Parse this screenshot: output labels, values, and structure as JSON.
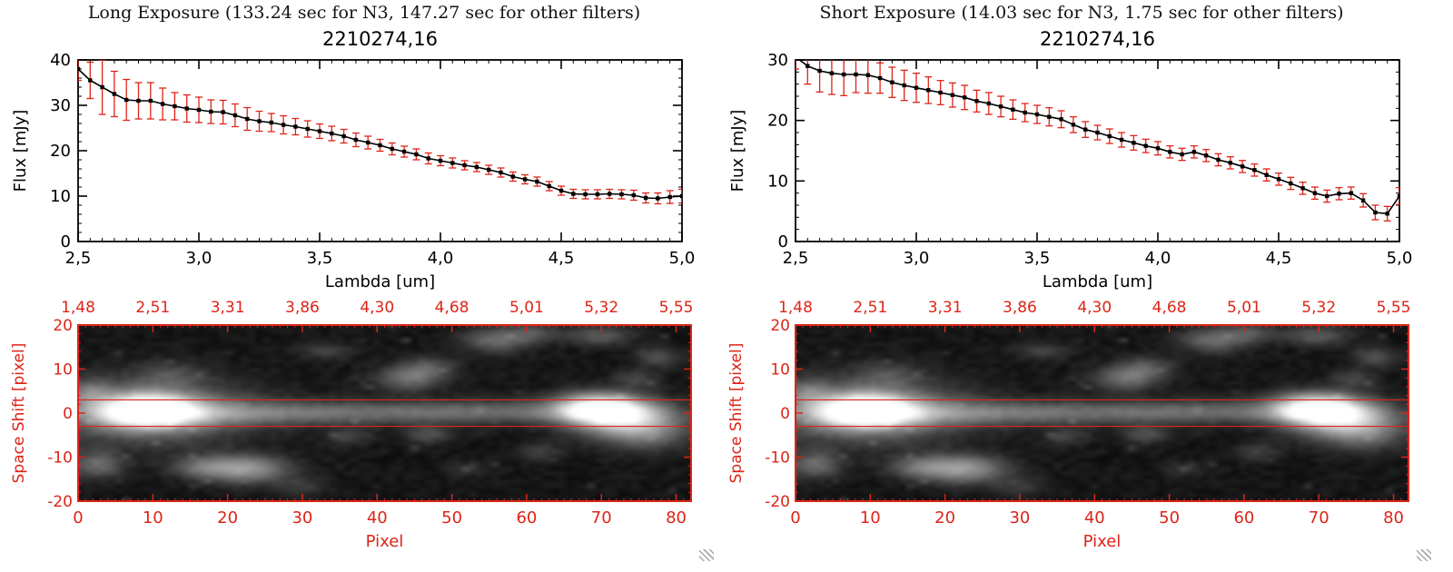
{
  "colors": {
    "red": "#dd2418",
    "black": "#000000",
    "background": "#ffffff"
  },
  "panels": [
    {
      "header": "Long Exposure (133.24 sec for N3, 147.27 sec for other filters)",
      "spectrum_ref": 0,
      "image_ref": 2
    },
    {
      "header": "Short Exposure (14.03 sec for N3, 1.75 sec for other filters)",
      "spectrum_ref": 1,
      "image_ref": 2
    }
  ],
  "chart_data": [
    {
      "type": "line",
      "title": "2210274,16",
      "xlabel": "Lambda [um]",
      "ylabel": "Flux [mJy]",
      "xlim": [
        2.5,
        5.0
      ],
      "ylim": [
        0,
        40
      ],
      "xtick_values": [
        2.5,
        3.0,
        3.5,
        4.0,
        4.5,
        5.0
      ],
      "xtick_labels": [
        "2,5",
        "3,0",
        "3,5",
        "4,0",
        "4,5",
        "5,0"
      ],
      "yticks": [
        0,
        10,
        20,
        30,
        40
      ],
      "marker": "square",
      "line_color": "#000000",
      "errorbar_color": "#dd2418",
      "x": [
        2.5,
        2.55,
        2.6,
        2.65,
        2.7,
        2.75,
        2.8,
        2.85,
        2.9,
        2.95,
        3.0,
        3.05,
        3.1,
        3.15,
        3.2,
        3.25,
        3.3,
        3.35,
        3.4,
        3.45,
        3.5,
        3.55,
        3.6,
        3.65,
        3.7,
        3.75,
        3.8,
        3.85,
        3.9,
        3.95,
        4.0,
        4.05,
        4.1,
        4.15,
        4.2,
        4.25,
        4.3,
        4.35,
        4.4,
        4.45,
        4.5,
        4.55,
        4.6,
        4.65,
        4.7,
        4.75,
        4.8,
        4.85,
        4.9,
        4.95,
        5.0
      ],
      "y": [
        38,
        35.5,
        34,
        32.5,
        31.2,
        31,
        31,
        30.3,
        29.8,
        29.3,
        29,
        28.6,
        28.5,
        27.8,
        27,
        26.5,
        26.2,
        25.7,
        25.3,
        24.8,
        24.3,
        23.8,
        23.2,
        22.4,
        21.8,
        21.2,
        20.4,
        19.8,
        19.2,
        18.3,
        17.8,
        17.3,
        16.8,
        16.4,
        15.8,
        15.2,
        14.3,
        13.7,
        13.2,
        12.2,
        11.2,
        10.5,
        10.4,
        10.4,
        10.5,
        10.4,
        10.2,
        9.6,
        9.5,
        9.8,
        10
      ],
      "yerr": [
        2.5,
        4,
        6,
        5,
        4.5,
        4,
        4,
        3.5,
        3,
        3,
        2.8,
        2.6,
        2.6,
        2.5,
        2.5,
        2.2,
        2,
        2,
        1.8,
        1.8,
        1.6,
        1.6,
        1.5,
        1.5,
        1.4,
        1.3,
        1.3,
        1.2,
        1.2,
        1.2,
        1.1,
        1.1,
        1,
        1,
        1,
        1,
        1,
        1,
        1,
        1,
        1,
        1,
        1,
        1,
        1,
        1,
        1.1,
        1.1,
        1.2,
        1.4,
        1.5
      ]
    },
    {
      "type": "line",
      "title": "2210274,16",
      "xlabel": "Lambda [um]",
      "ylabel": "Flux [mJy]",
      "xlim": [
        2.5,
        5.0
      ],
      "ylim": [
        0,
        30
      ],
      "xtick_values": [
        2.5,
        3.0,
        3.5,
        4.0,
        4.5,
        5.0
      ],
      "xtick_labels": [
        "2,5",
        "3,0",
        "3,5",
        "4,0",
        "4,5",
        "5,0"
      ],
      "yticks": [
        0,
        10,
        20,
        30
      ],
      "marker": "square",
      "line_color": "#000000",
      "errorbar_color": "#dd2418",
      "x": [
        2.5,
        2.55,
        2.6,
        2.65,
        2.7,
        2.75,
        2.8,
        2.85,
        2.9,
        2.95,
        3.0,
        3.05,
        3.1,
        3.15,
        3.2,
        3.25,
        3.3,
        3.35,
        3.4,
        3.45,
        3.5,
        3.55,
        3.6,
        3.65,
        3.7,
        3.75,
        3.8,
        3.85,
        3.9,
        3.95,
        4.0,
        4.05,
        4.1,
        4.15,
        4.2,
        4.25,
        4.3,
        4.35,
        4.4,
        4.45,
        4.5,
        4.55,
        4.6,
        4.65,
        4.7,
        4.75,
        4.8,
        4.85,
        4.9,
        4.95,
        5.0
      ],
      "y": [
        30.5,
        29,
        28.2,
        27.8,
        27.6,
        27.6,
        27.5,
        27,
        26.3,
        25.8,
        25.4,
        25,
        24.6,
        24.2,
        23.8,
        23.2,
        22.8,
        22.3,
        21.8,
        21.3,
        21,
        20.6,
        20.2,
        19.3,
        18.5,
        18,
        17.4,
        16.8,
        16.3,
        15.8,
        15.4,
        14.8,
        14.4,
        14.8,
        14.2,
        13.5,
        13,
        12.4,
        11.8,
        11,
        10.3,
        9.6,
        8.8,
        8,
        7.5,
        7.9,
        8,
        6.8,
        4.8,
        4.6,
        7.5
      ],
      "yerr": [
        2,
        3,
        3.5,
        3.5,
        3.5,
        3,
        3,
        2.5,
        2.5,
        2.5,
        2.4,
        2.2,
        2,
        2,
        2,
        1.8,
        1.8,
        1.7,
        1.6,
        1.5,
        1.5,
        1.5,
        1.4,
        1.3,
        1.3,
        1.2,
        1.2,
        1.2,
        1.2,
        1.1,
        1.1,
        1,
        1,
        1,
        1,
        1,
        1,
        1,
        1,
        1,
        1,
        1,
        1,
        1,
        1,
        1,
        1,
        1.1,
        1.2,
        1.2,
        1.4
      ],
      "note": "local bump near 4.15 and 4.75, dip to ~4.7 at 4.9"
    },
    {
      "type": "heatmap",
      "xlabel": "Pixel",
      "ylabel": "Space Shift [pixel]",
      "xlim": [
        0,
        82
      ],
      "ylim": [
        -20,
        20
      ],
      "xticks": [
        0,
        10,
        20,
        30,
        40,
        50,
        60,
        70,
        80
      ],
      "yticks": [
        20,
        10,
        0,
        -10,
        -20
      ],
      "top_axis_ticks": [
        "1,48",
        "2,51",
        "3,31",
        "3,86",
        "4,30",
        "4,68",
        "5,01",
        "5,32",
        "5,55"
      ],
      "extraction_lines_y": [
        3,
        -3
      ],
      "colormap": "grayscale",
      "blobs": [
        [
          9,
          0.5,
          4.5,
          2.6,
          1.05
        ],
        [
          9,
          0.5,
          9,
          5,
          0.4
        ],
        [
          22,
          0,
          14,
          2.0,
          0.22
        ],
        [
          40,
          0,
          22,
          1.7,
          0.16
        ],
        [
          58,
          0.5,
          14,
          1.9,
          0.18
        ],
        [
          70,
          1,
          4,
          2.4,
          0.9
        ],
        [
          73,
          -1.5,
          4.5,
          3.2,
          0.5
        ],
        [
          77,
          -4,
          3.5,
          3,
          0.3
        ],
        [
          22,
          -13,
          4,
          2.2,
          0.5
        ],
        [
          16,
          -12.5,
          3,
          1.8,
          0.22
        ],
        [
          2,
          -12,
          2.5,
          2.2,
          0.3
        ],
        [
          1,
          5,
          2,
          2,
          0.22
        ],
        [
          44,
          8,
          3,
          2,
          0.3
        ],
        [
          47,
          10.5,
          2.5,
          1.8,
          0.22
        ],
        [
          56,
          17,
          3,
          2,
          0.3
        ],
        [
          61,
          18.5,
          2.5,
          1.5,
          0.2
        ],
        [
          70,
          18,
          3,
          1.6,
          0.24
        ],
        [
          78,
          13,
          2,
          1.6,
          0.2
        ],
        [
          47,
          -5,
          2.2,
          1.5,
          0.2
        ],
        [
          36,
          -5.5,
          2,
          1.3,
          0.16
        ],
        [
          62,
          -9,
          2,
          1.5,
          0.14
        ],
        [
          75,
          8,
          2,
          1.5,
          0.16
        ],
        [
          33,
          14.5,
          2.5,
          1.5,
          0.14
        ],
        [
          12,
          9,
          3,
          2,
          0.15
        ],
        [
          30,
          -17,
          2.5,
          1.5,
          0.12
        ],
        [
          52,
          -13,
          2,
          1.3,
          0.1
        ]
      ]
    }
  ]
}
